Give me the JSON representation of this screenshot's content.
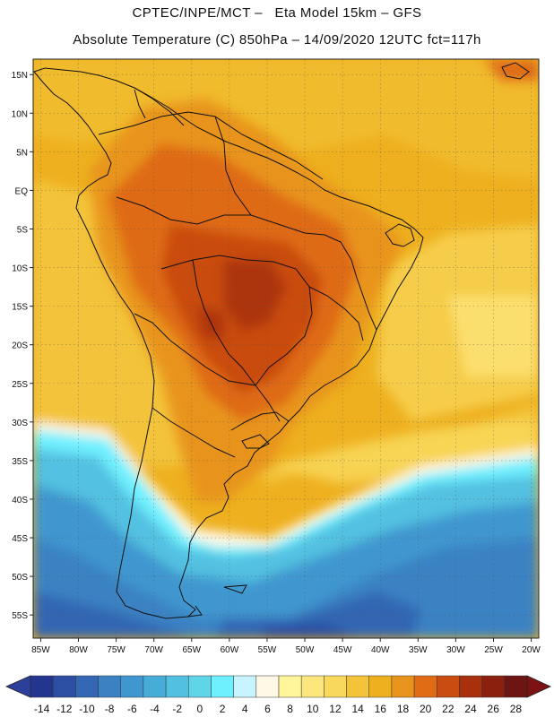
{
  "title": {
    "line1": "CPTEC/INPE/MCT –   Eta Model 15km – GFS",
    "line2": "Absolute Temperature (C) 850hPa – 14/09/2020 12UTC fct=117h"
  },
  "map": {
    "lon_range": [
      -86,
      -19
    ],
    "lat_range": [
      -58,
      17
    ],
    "lon_ticks": [
      {
        "value": -85,
        "label": "85W"
      },
      {
        "value": -80,
        "label": "80W"
      },
      {
        "value": -75,
        "label": "75W"
      },
      {
        "value": -70,
        "label": "70W"
      },
      {
        "value": -65,
        "label": "65W"
      },
      {
        "value": -60,
        "label": "60W"
      },
      {
        "value": -55,
        "label": "55W"
      },
      {
        "value": -50,
        "label": "50W"
      },
      {
        "value": -45,
        "label": "45W"
      },
      {
        "value": -40,
        "label": "40W"
      },
      {
        "value": -35,
        "label": "35W"
      },
      {
        "value": -30,
        "label": "30W"
      },
      {
        "value": -25,
        "label": "25W"
      },
      {
        "value": -20,
        "label": "20W"
      }
    ],
    "lat_ticks": [
      {
        "value": 15,
        "label": "15N"
      },
      {
        "value": 10,
        "label": "10N"
      },
      {
        "value": 5,
        "label": "5N"
      },
      {
        "value": 0,
        "label": "EQ"
      },
      {
        "value": -5,
        "label": "5S"
      },
      {
        "value": -10,
        "label": "10S"
      },
      {
        "value": -15,
        "label": "15S"
      },
      {
        "value": -20,
        "label": "20S"
      },
      {
        "value": -25,
        "label": "25S"
      },
      {
        "value": -30,
        "label": "30S"
      },
      {
        "value": -35,
        "label": "35S"
      },
      {
        "value": -40,
        "label": "40S"
      },
      {
        "value": -45,
        "label": "45S"
      },
      {
        "value": -50,
        "label": "50S"
      },
      {
        "value": -55,
        "label": "55S"
      }
    ]
  },
  "colorbar": {
    "unit": "C",
    "colors": [
      "#23358f",
      "#2c4ea3",
      "#3366b3",
      "#3b82c3",
      "#3f97cf",
      "#46add9",
      "#52c1e1",
      "#5fd5ea",
      "#6ff0ff",
      "#c8f4ff",
      "#fff8e6",
      "#fff69a",
      "#fde77d",
      "#f9d95c",
      "#f3c43a",
      "#eeb01f",
      "#e8941c",
      "#df6b14",
      "#c94c10",
      "#a8300d",
      "#8a200d",
      "#6d1512"
    ],
    "low_color": "#2c3f9a",
    "high_color": "#7d1215",
    "labels": [
      "-14",
      "-12",
      "-10",
      "-8",
      "-6",
      "-4",
      "-2",
      "0",
      "2",
      "4",
      "6",
      "8",
      "10",
      "12",
      "14",
      "16",
      "18",
      "20",
      "22",
      "24",
      "26",
      "28"
    ]
  },
  "colors": {
    "ocean_warm": "#eeb01f",
    "land_hot": "#c94c10",
    "cold_band": "#5fd5ea",
    "deep_cold": "#3366b3"
  }
}
